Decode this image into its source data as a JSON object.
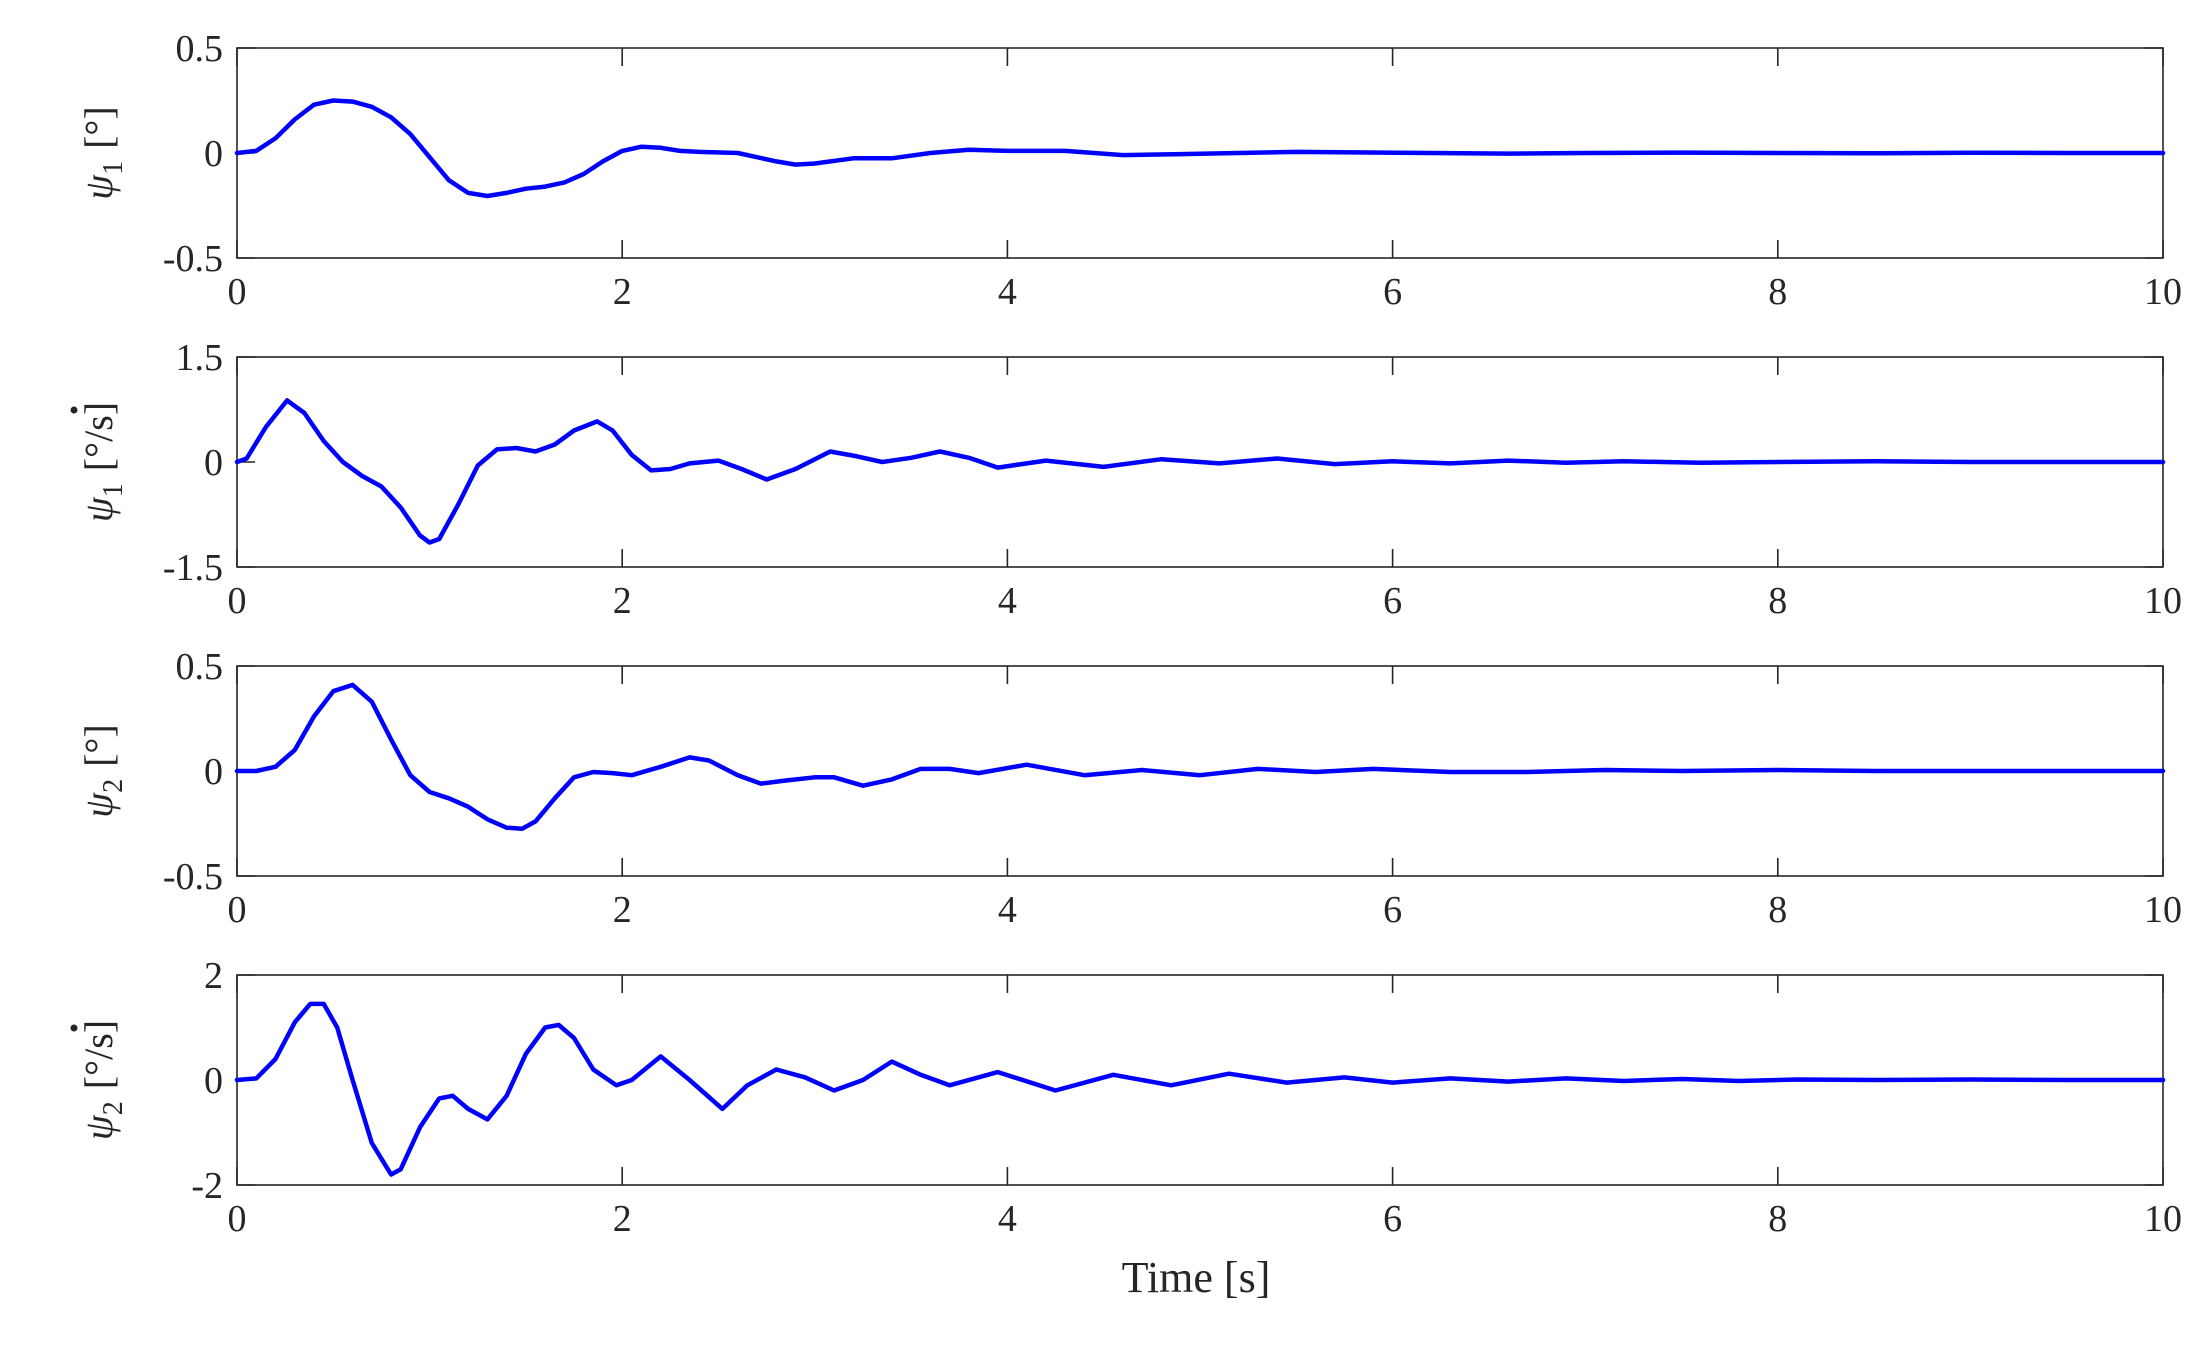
{
  "figure": {
    "xlabel": "Time [s]"
  },
  "chart_data": [
    {
      "type": "line",
      "ylabel_symbol": "ψ",
      "ylabel_sub": "1",
      "ylabel_dot": false,
      "ylabel_unit": "[°]",
      "xlim": [
        0,
        10
      ],
      "ylim": [
        -0.5,
        0.5
      ],
      "xticks": [
        "0",
        "2",
        "4",
        "6",
        "8",
        "10"
      ],
      "yticks": [
        "-0.5",
        "0",
        "0.5"
      ],
      "line_color": "#0000ff",
      "series": [
        {
          "x": [
            0,
            0.1,
            0.2,
            0.3,
            0.4,
            0.5,
            0.6,
            0.7,
            0.8,
            0.9,
            1.0,
            1.1,
            1.2,
            1.3,
            1.4,
            1.5,
            1.6,
            1.7,
            1.8,
            1.9,
            2.0,
            2.1,
            2.2,
            2.3,
            2.4,
            2.6,
            2.8,
            2.9,
            3.0,
            3.2,
            3.4,
            3.6,
            3.8,
            4.0,
            4.3,
            4.6,
            4.9,
            5.2,
            5.5,
            5.8,
            6.2,
            6.6,
            7.0,
            7.5,
            8.0,
            8.5,
            9.0,
            9.5,
            10.0
          ],
          "y": [
            0,
            0.01,
            0.07,
            0.16,
            0.23,
            0.25,
            0.245,
            0.22,
            0.17,
            0.09,
            -0.02,
            -0.13,
            -0.19,
            -0.205,
            -0.19,
            -0.17,
            -0.16,
            -0.14,
            -0.1,
            -0.04,
            0.01,
            0.03,
            0.025,
            0.01,
            0.005,
            0.0,
            -0.04,
            -0.055,
            -0.05,
            -0.025,
            -0.025,
            0.0,
            0.015,
            0.01,
            0.01,
            -0.01,
            -0.005,
            0.0,
            0.005,
            0.003,
            0.0,
            -0.003,
            0.0,
            0.002,
            0.0,
            -0.001,
            0.001,
            0.0,
            0.0
          ]
        }
      ]
    },
    {
      "type": "line",
      "ylabel_symbol": "ψ",
      "ylabel_sub": "1",
      "ylabel_dot": true,
      "ylabel_unit": "[°/s]",
      "xlim": [
        0,
        10
      ],
      "ylim": [
        -1.5,
        1.5
      ],
      "xticks": [
        "0",
        "2",
        "4",
        "6",
        "8",
        "10"
      ],
      "yticks": [
        "-1.5",
        "0",
        "1.5"
      ],
      "line_color": "#0000ff",
      "series": [
        {
          "x": [
            0,
            0.05,
            0.15,
            0.26,
            0.35,
            0.45,
            0.55,
            0.65,
            0.75,
            0.85,
            0.95,
            1.0,
            1.05,
            1.15,
            1.25,
            1.35,
            1.45,
            1.55,
            1.65,
            1.75,
            1.87,
            1.95,
            2.05,
            2.15,
            2.25,
            2.35,
            2.5,
            2.62,
            2.75,
            2.9,
            3.08,
            3.22,
            3.35,
            3.5,
            3.65,
            3.8,
            3.95,
            4.2,
            4.5,
            4.8,
            5.1,
            5.4,
            5.7,
            6.0,
            6.3,
            6.6,
            6.9,
            7.2,
            7.6,
            8.0,
            8.5,
            9.0,
            9.5,
            10.0
          ],
          "y": [
            0,
            0.05,
            0.5,
            0.88,
            0.7,
            0.3,
            0.0,
            -0.2,
            -0.35,
            -0.65,
            -1.05,
            -1.15,
            -1.1,
            -0.6,
            -0.05,
            0.18,
            0.2,
            0.15,
            0.25,
            0.45,
            0.58,
            0.45,
            0.1,
            -0.12,
            -0.1,
            -0.02,
            0.02,
            -0.1,
            -0.25,
            -0.1,
            0.15,
            0.08,
            0.0,
            0.06,
            0.15,
            0.06,
            -0.08,
            0.02,
            -0.07,
            0.04,
            -0.02,
            0.05,
            -0.03,
            0.01,
            -0.02,
            0.02,
            -0.01,
            0.01,
            -0.01,
            0.0,
            0.01,
            0.0,
            0.0,
            0.0
          ]
        }
      ]
    },
    {
      "type": "line",
      "ylabel_symbol": "ψ",
      "ylabel_sub": "2",
      "ylabel_dot": false,
      "ylabel_unit": "[°]",
      "xlim": [
        0,
        10
      ],
      "ylim": [
        -0.5,
        0.5
      ],
      "xticks": [
        "0",
        "2",
        "4",
        "6",
        "8",
        "10"
      ],
      "yticks": [
        "-0.5",
        "0",
        "0.5"
      ],
      "line_color": "#0000ff",
      "series": [
        {
          "x": [
            0,
            0.1,
            0.2,
            0.3,
            0.4,
            0.5,
            0.6,
            0.7,
            0.8,
            0.9,
            1.0,
            1.1,
            1.2,
            1.3,
            1.4,
            1.48,
            1.55,
            1.65,
            1.75,
            1.85,
            1.95,
            2.05,
            2.2,
            2.35,
            2.45,
            2.6,
            2.72,
            2.85,
            3.0,
            3.1,
            3.25,
            3.4,
            3.55,
            3.7,
            3.85,
            4.1,
            4.4,
            4.7,
            5.0,
            5.3,
            5.6,
            5.9,
            6.3,
            6.7,
            7.1,
            7.5,
            8.0,
            8.5,
            9.0,
            9.5,
            10.0
          ],
          "y": [
            0,
            0.0,
            0.02,
            0.1,
            0.26,
            0.38,
            0.41,
            0.33,
            0.15,
            -0.02,
            -0.1,
            -0.13,
            -0.17,
            -0.23,
            -0.27,
            -0.275,
            -0.24,
            -0.13,
            -0.03,
            -0.005,
            -0.01,
            -0.02,
            0.02,
            0.065,
            0.05,
            -0.02,
            -0.06,
            -0.045,
            -0.03,
            -0.03,
            -0.07,
            -0.04,
            0.01,
            0.01,
            -0.01,
            0.03,
            -0.02,
            0.005,
            -0.02,
            0.01,
            -0.005,
            0.01,
            -0.005,
            -0.005,
            0.005,
            0.0,
            0.005,
            0.0,
            0.0,
            0.0,
            0.0
          ]
        }
      ]
    },
    {
      "type": "line",
      "ylabel_symbol": "ψ",
      "ylabel_sub": "2",
      "ylabel_dot": true,
      "ylabel_unit": "[°/s]",
      "xlim": [
        0,
        10
      ],
      "ylim": [
        -2,
        2
      ],
      "xticks": [
        "0",
        "2",
        "4",
        "6",
        "8",
        "10"
      ],
      "yticks": [
        "-2",
        "0",
        "2"
      ],
      "line_color": "#0000ff",
      "series": [
        {
          "x": [
            0,
            0.1,
            0.2,
            0.3,
            0.38,
            0.45,
            0.52,
            0.6,
            0.7,
            0.8,
            0.85,
            0.95,
            1.05,
            1.12,
            1.2,
            1.3,
            1.4,
            1.5,
            1.6,
            1.67,
            1.75,
            1.85,
            1.97,
            2.05,
            2.2,
            2.35,
            2.52,
            2.65,
            2.8,
            2.95,
            3.1,
            3.25,
            3.4,
            3.55,
            3.7,
            3.95,
            4.25,
            4.55,
            4.85,
            5.15,
            5.45,
            5.75,
            6.0,
            6.3,
            6.6,
            6.9,
            7.2,
            7.5,
            7.8,
            8.1,
            8.5,
            9.0,
            9.5,
            10.0
          ],
          "y": [
            0,
            0.03,
            0.4,
            1.1,
            1.45,
            1.45,
            1.0,
            0.0,
            -1.2,
            -1.8,
            -1.7,
            -0.9,
            -0.35,
            -0.3,
            -0.55,
            -0.75,
            -0.3,
            0.5,
            1.0,
            1.05,
            0.8,
            0.2,
            -0.1,
            0.0,
            0.45,
            0.0,
            -0.55,
            -0.1,
            0.2,
            0.05,
            -0.2,
            0.0,
            0.35,
            0.1,
            -0.1,
            0.15,
            -0.2,
            0.1,
            -0.1,
            0.12,
            -0.05,
            0.05,
            -0.05,
            0.03,
            -0.03,
            0.03,
            -0.02,
            0.02,
            -0.02,
            0.01,
            0.0,
            0.01,
            0.0,
            0.0
          ]
        }
      ]
    }
  ]
}
